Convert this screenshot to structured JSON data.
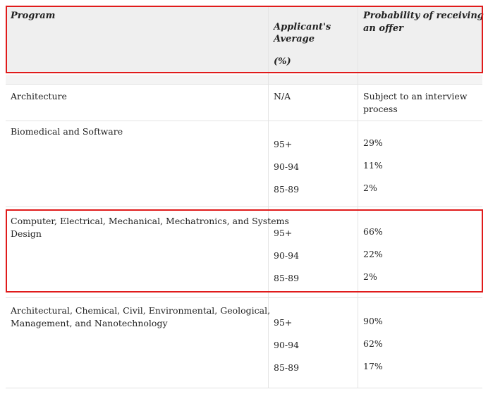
{
  "table": {
    "headers": {
      "program": "Program",
      "average_line1": "Applicant's",
      "average_line2": "Average",
      "average_unit": "(%)",
      "probability_line1": "Probability of receiving",
      "probability_line2": "an offer"
    },
    "rows": [
      {
        "program": "Architecture",
        "entries": [
          {
            "average": "N/A",
            "probability_line1": "Subject to an interview",
            "probability_line2": "process"
          }
        ]
      },
      {
        "program": "Biomedical and Software",
        "entries": [
          {
            "average": "95+",
            "probability": "29%"
          },
          {
            "average": "90-94",
            "probability": "11%"
          },
          {
            "average": "85-89",
            "probability": "2%"
          }
        ]
      },
      {
        "program_line1": "Computer, Electrical, Mechanical, Mechatronics, and Systems",
        "program_line2": "Design",
        "entries": [
          {
            "average": "95+",
            "probability": "66%"
          },
          {
            "average": "90-94",
            "probability": "22%"
          },
          {
            "average": "85-89",
            "probability": "2%"
          }
        ]
      },
      {
        "program_line1": "Architectural, Chemical, Civil, Environmental, Geological,",
        "program_line2": "Management, and Nanotechnology",
        "entries": [
          {
            "average": "95+",
            "probability": "90%"
          },
          {
            "average": "90-94",
            "probability": "62%"
          },
          {
            "average": "85-89",
            "probability": "17%"
          }
        ]
      }
    ],
    "highlight_color": "#e01b1b",
    "header_background": "#efefef"
  }
}
